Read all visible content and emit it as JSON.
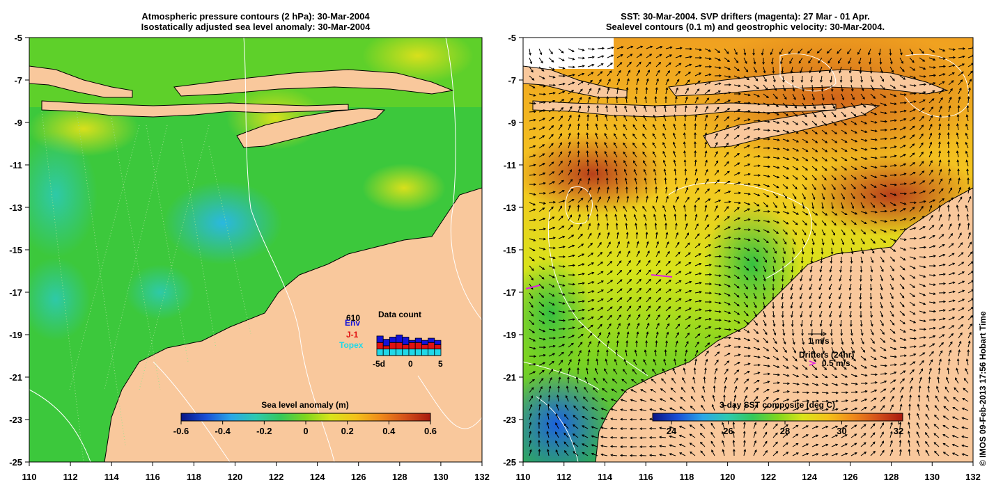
{
  "left_panel": {
    "title_line1": "Atmospheric pressure contours (2 hPa): 30-Mar-2004",
    "title_line2": "Isostatically adjusted sea level anomaly: 30-Mar-2004",
    "x_ticks": [
      "110",
      "112",
      "114",
      "116",
      "118",
      "120",
      "122",
      "124",
      "126",
      "128",
      "130",
      "132"
    ],
    "y_ticks": [
      "-5",
      "-7",
      "-9",
      "-11",
      "-13",
      "-15",
      "-17",
      "-19",
      "-21",
      "-23",
      "-25"
    ],
    "colorbar": {
      "label": "Sea level anomaly (m)",
      "ticks": [
        "-0.6",
        "-0.4",
        "-0.2",
        "0",
        "0.2",
        "0.4",
        "0.6"
      ],
      "colors": [
        "#081484",
        "#1a4fd6",
        "#2aa6e8",
        "#2ec9b0",
        "#35c85a",
        "#7fd61e",
        "#d9e41a",
        "#f4c21a",
        "#f08a1a",
        "#d4501a",
        "#a81a10"
      ]
    },
    "data_count": {
      "title": "Data count",
      "max_label": "610",
      "missions": [
        {
          "name": "Env",
          "color": "#1212d8"
        },
        {
          "name": "J-1",
          "color": "#e01010"
        },
        {
          "name": "Topex",
          "color": "#20d8e8"
        }
      ],
      "x_ticks": [
        "-5d",
        "0",
        "5"
      ],
      "bars_topex": [
        0.3,
        0.3,
        0.3,
        0.3,
        0.3,
        0.3,
        0.3,
        0.3,
        0.3,
        0.3
      ],
      "bars_j1": [
        0.3,
        0.15,
        0.3,
        0.3,
        0.2,
        0.3,
        0.3,
        0.2,
        0.3,
        0.2
      ],
      "bars_env": [
        0.3,
        0.3,
        0.25,
        0.35,
        0.35,
        0.1,
        0.2,
        0.2,
        0.2,
        0.2
      ]
    }
  },
  "right_panel": {
    "title_line1": "SST: 30-Mar-2004. SVP drifters (magenta): 27 Mar - 01 Apr.",
    "title_line2": "Sealevel contours (0.1 m) and geostrophic velocity: 30-Mar-2004.",
    "x_ticks": [
      "110",
      "112",
      "114",
      "116",
      "118",
      "120",
      "122",
      "124",
      "126",
      "128",
      "130",
      "132"
    ],
    "y_ticks": [
      "-5",
      "-7",
      "-9",
      "-11",
      "-13",
      "-15",
      "-17",
      "-19",
      "-21",
      "-23",
      "-25"
    ],
    "velocity_scale_label": "1 m/s",
    "drifters_label": "Drifters (24hr)",
    "drifters_scale_label": "0.5 m/s",
    "drifter_color": "#e020e0",
    "colorbar": {
      "label": "3-day SST composite (deg C)",
      "ticks": [
        "24",
        "26",
        "28",
        "30",
        "32"
      ],
      "colors": [
        "#081484",
        "#1a4fd6",
        "#2aa6e8",
        "#2ec9b0",
        "#35c85a",
        "#7fd61e",
        "#d9e41a",
        "#f4c21a",
        "#f08a1a",
        "#d4501a",
        "#a81a10"
      ]
    }
  },
  "map_colors": {
    "land": "#f9c89c",
    "coast": "#000000",
    "contour": "#ffffff"
  },
  "copyright": "© IMOS 09-Feb-2013 17:56 Hobart Time"
}
